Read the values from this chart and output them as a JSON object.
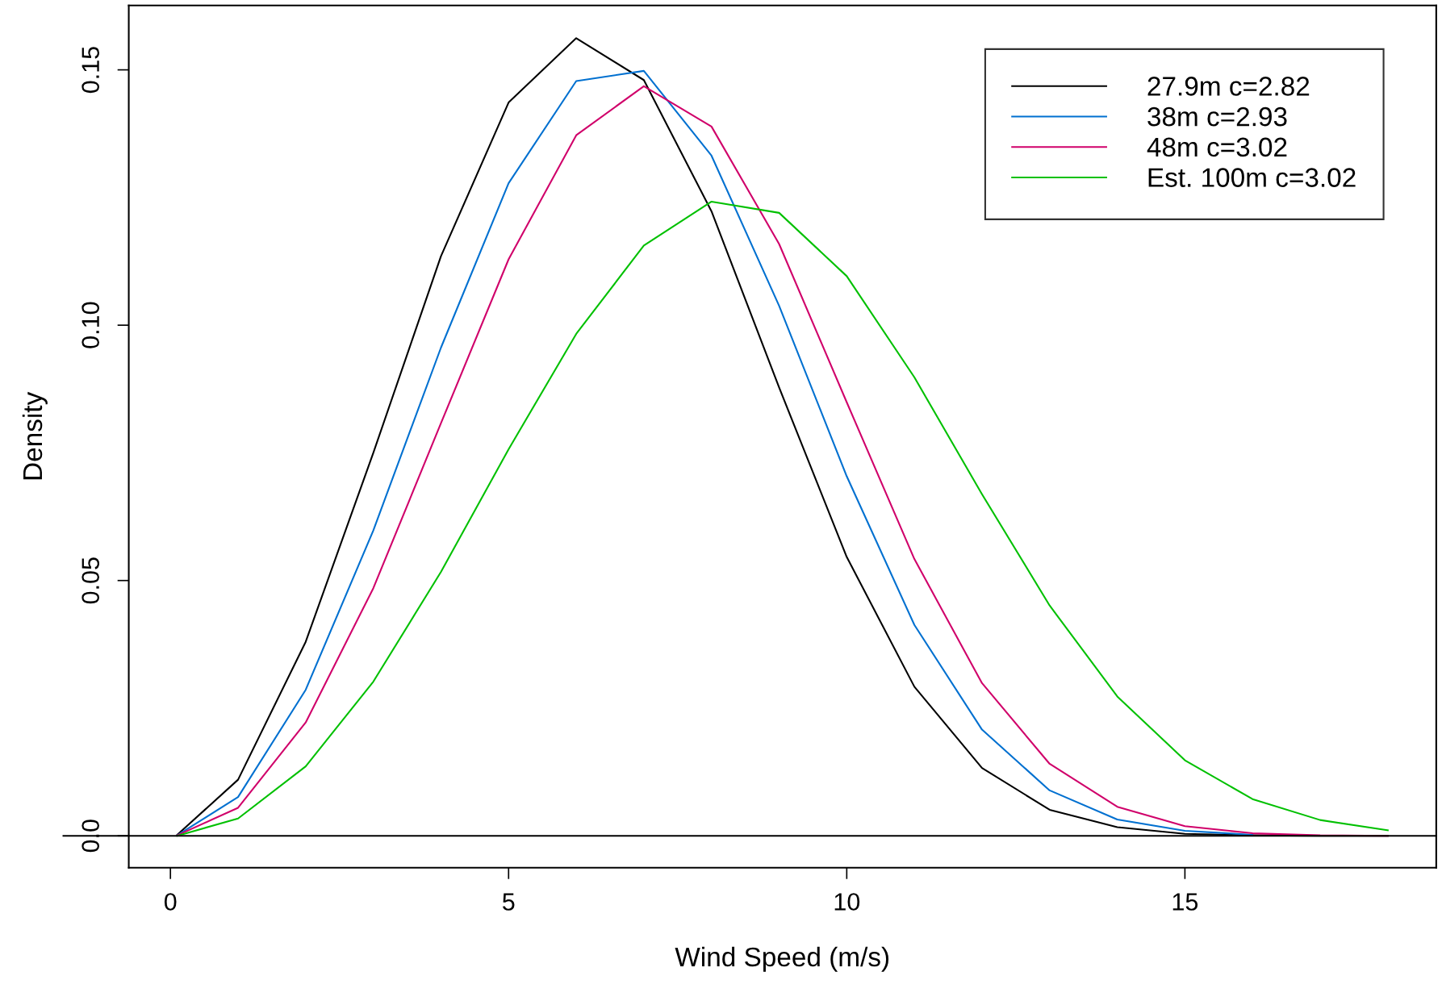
{
  "chart_data": {
    "type": "line",
    "xlabel": "Wind Speed (m/s)",
    "ylabel": "Density",
    "x": [
      0.1,
      1,
      2,
      3,
      4,
      5,
      6,
      7,
      8,
      9,
      10,
      11,
      12,
      13,
      14,
      15,
      16,
      17,
      18
    ],
    "series": [
      {
        "name": "27.9m c=2.82",
        "color": "#000000",
        "values": [
          0.0002,
          0.011,
          0.038,
          0.075,
          0.1135,
          0.1436,
          0.1562,
          0.148,
          0.1223,
          0.0878,
          0.0546,
          0.0292,
          0.0133,
          0.0051,
          0.0017,
          0.0004,
          0.0001,
          0,
          0
        ]
      },
      {
        "name": "38m c=2.93",
        "color": "#0070d0",
        "values": [
          0.0001,
          0.0076,
          0.0286,
          0.0598,
          0.0956,
          0.1278,
          0.1478,
          0.1498,
          0.1332,
          0.1038,
          0.0704,
          0.0413,
          0.0208,
          0.0089,
          0.0032,
          0.001,
          0.0002,
          null,
          null
        ]
      },
      {
        "name": "48m c=3.02",
        "color": "#d0006a",
        "values": [
          0.0001,
          0.0055,
          0.0222,
          0.0485,
          0.0808,
          0.1129,
          0.1372,
          0.1468,
          0.1389,
          0.1159,
          0.0849,
          0.0542,
          0.0299,
          0.0141,
          0.0057,
          0.0019,
          0.0005,
          0.0001,
          0
        ]
      },
      {
        "name": "Est. 100m c=3.02",
        "color": "#00c000",
        "values": [
          0,
          0.0034,
          0.0136,
          0.0302,
          0.0517,
          0.0757,
          0.0983,
          0.1156,
          0.1242,
          0.122,
          0.1096,
          0.0898,
          0.0669,
          0.0451,
          0.0273,
          0.0148,
          0.0072,
          0.0031,
          0.0011
        ]
      }
    ],
    "xlim": [
      -0.616,
      18.716
    ],
    "ylim": [
      -0.00625,
      0.1626
    ],
    "xticks": [
      0,
      5,
      10,
      15
    ],
    "yticks": [
      {
        "value": 0,
        "label": "0.0"
      },
      0.05,
      {
        "value": 0.1,
        "label": "0.10"
      },
      0.15
    ],
    "ref_lines": [
      {
        "axis": "y",
        "value": 0,
        "color": "#000000"
      }
    ],
    "grid": false,
    "legend": "top right",
    "marker": "none",
    "line_style": "solid"
  }
}
